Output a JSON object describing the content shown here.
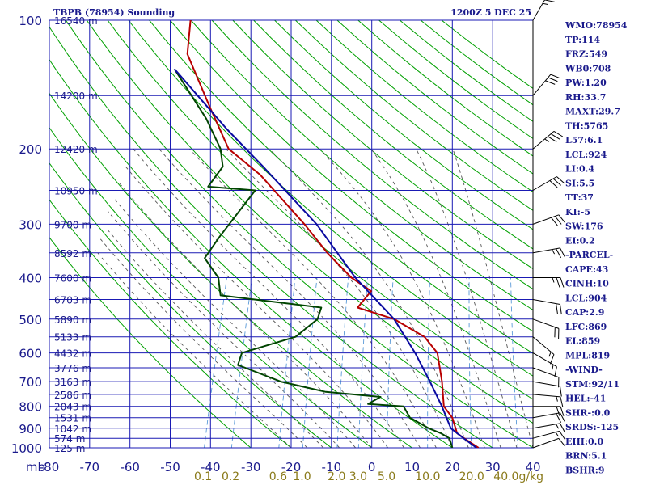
{
  "chart_data": {
    "type": "line",
    "title": "TBPB (78954) Sounding",
    "time_label": "1200Z  5 DEC 25",
    "x_unit_label": "mb",
    "mix_unit_label": "g/kg",
    "x_range_c": [
      -80,
      40
    ],
    "p_range_mb": [
      1000,
      100
    ],
    "x_ticks": [
      "-80",
      "-70",
      "-60",
      "-50",
      "-40",
      "-30",
      "-20",
      "-10",
      "0",
      "10",
      "20",
      "30",
      "40"
    ],
    "x_tick_values": [
      -80,
      -70,
      -60,
      -50,
      -40,
      -30,
      -20,
      -10,
      0,
      10,
      20,
      30,
      40
    ],
    "pressure_ticks": [
      "100",
      "200",
      "300",
      "400",
      "500",
      "600",
      "700",
      "800",
      "900",
      "1000"
    ],
    "pressure_values": [
      100,
      200,
      300,
      400,
      500,
      600,
      700,
      800,
      900,
      1000
    ],
    "altitudes": [
      {
        "p": 100,
        "label": "16540 m"
      },
      {
        "p": 150,
        "label": "14200 m"
      },
      {
        "p": 200,
        "label": "12420 m"
      },
      {
        "p": 250,
        "label": "10950 m"
      },
      {
        "p": 300,
        "label": "9700 m"
      },
      {
        "p": 350,
        "label": "8592 m"
      },
      {
        "p": 400,
        "label": "7600 m"
      },
      {
        "p": 450,
        "label": "6703 m"
      },
      {
        "p": 500,
        "label": "5890 m"
      },
      {
        "p": 550,
        "label": "5133 m"
      },
      {
        "p": 600,
        "label": "4432 m"
      },
      {
        "p": 650,
        "label": "3776 m"
      },
      {
        "p": 700,
        "label": "3163 m"
      },
      {
        "p": 750,
        "label": "2586 m"
      },
      {
        "p": 800,
        "label": "2043 m"
      },
      {
        "p": 850,
        "label": "1531 m"
      },
      {
        "p": 900,
        "label": "1042 m"
      },
      {
        "p": 950,
        "label": "574 m"
      },
      {
        "p": 1000,
        "label": "125 m"
      }
    ],
    "mixing_ratio_labels": [
      "0.1",
      "0.2",
      "0.6",
      "1.0",
      "2.0",
      "3.0",
      "5.0",
      "10.0",
      "20.0",
      "40.0"
    ],
    "mixing_ratio_values": [
      0.1,
      0.2,
      0.6,
      1.0,
      2.0,
      3.0,
      5.0,
      10.0,
      20.0,
      40.0
    ],
    "series": [
      {
        "name": "temperature",
        "color": "#b80000",
        "points": [
          [
            26.5,
            1000
          ],
          [
            23,
            960
          ],
          [
            20,
            925
          ],
          [
            17.5,
            850
          ],
          [
            14.5,
            800
          ],
          [
            12,
            700
          ],
          [
            8.5,
            600
          ],
          [
            4,
            550
          ],
          [
            -5,
            500
          ],
          [
            -15,
            470
          ],
          [
            -13,
            430
          ],
          [
            -19,
            400
          ],
          [
            -27,
            350
          ],
          [
            -35,
            300
          ],
          [
            -50,
            230
          ],
          [
            -60,
            200
          ],
          [
            -68,
            160
          ],
          [
            -78,
            120
          ],
          [
            -80,
            100
          ]
        ]
      },
      {
        "name": "dewpoint",
        "color": "#004400",
        "points": [
          [
            20,
            1000
          ],
          [
            18.5,
            950
          ],
          [
            16,
            925
          ],
          [
            12.5,
            900
          ],
          [
            7,
            850
          ],
          [
            4.5,
            800
          ],
          [
            -4.5,
            790
          ],
          [
            -2,
            760
          ],
          [
            -16,
            740
          ],
          [
            -28,
            700
          ],
          [
            -40,
            640
          ],
          [
            -40,
            600
          ],
          [
            -28,
            550
          ],
          [
            -24,
            500
          ],
          [
            -24,
            470
          ],
          [
            -50,
            440
          ],
          [
            -52,
            400
          ],
          [
            -57,
            360
          ],
          [
            -55,
            320
          ],
          [
            -50,
            250
          ],
          [
            -62,
            245
          ],
          [
            -60,
            220
          ],
          [
            -62,
            200
          ],
          [
            -68,
            170
          ],
          [
            -80,
            130
          ]
        ]
      },
      {
        "name": "parcel",
        "color": "#0a0aa0",
        "points": [
          [
            26,
            1000
          ],
          [
            22,
            950
          ],
          [
            18,
            900
          ],
          [
            14,
            800
          ],
          [
            9,
            700
          ],
          [
            3,
            600
          ],
          [
            -5,
            500
          ],
          [
            -18,
            400
          ],
          [
            -32,
            300
          ],
          [
            -50,
            220
          ],
          [
            -62,
            180
          ],
          [
            -80,
            130
          ]
        ]
      }
    ],
    "wind_barbs": [
      {
        "p": 1000,
        "dir_deg": 70,
        "speed_kt": 10
      },
      {
        "p": 950,
        "dir_deg": 75,
        "speed_kt": 15
      },
      {
        "p": 900,
        "dir_deg": 80,
        "speed_kt": 15
      },
      {
        "p": 850,
        "dir_deg": 80,
        "speed_kt": 20
      },
      {
        "p": 800,
        "dir_deg": 90,
        "speed_kt": 20
      },
      {
        "p": 750,
        "dir_deg": 95,
        "speed_kt": 15
      },
      {
        "p": 700,
        "dir_deg": 100,
        "speed_kt": 10
      },
      {
        "p": 650,
        "dir_deg": 110,
        "speed_kt": 10
      },
      {
        "p": 600,
        "dir_deg": 120,
        "speed_kt": 15
      },
      {
        "p": 550,
        "dir_deg": 130,
        "speed_kt": 15
      },
      {
        "p": 500,
        "dir_deg": 110,
        "speed_kt": 20
      },
      {
        "p": 450,
        "dir_deg": 100,
        "speed_kt": 20
      },
      {
        "p": 400,
        "dir_deg": 90,
        "speed_kt": 25
      },
      {
        "p": 350,
        "dir_deg": 80,
        "speed_kt": 25
      },
      {
        "p": 300,
        "dir_deg": 70,
        "speed_kt": 30
      },
      {
        "p": 250,
        "dir_deg": 60,
        "speed_kt": 30
      },
      {
        "p": 200,
        "dir_deg": 50,
        "speed_kt": 35
      },
      {
        "p": 150,
        "dir_deg": 40,
        "speed_kt": 30
      },
      {
        "p": 100,
        "dir_deg": 30,
        "speed_kt": 25
      }
    ]
  },
  "indices": [
    "WMO:78954",
    "TP:114",
    "FRZ:549",
    "WB0:708",
    "PW:1.20",
    "RH:33.7",
    "MAXT:29.7",
    "TH:5765",
    "L57:6.1",
    "LCL:924",
    "LI:0.4",
    "SI:5.5",
    "TT:37",
    "KI:-5",
    "SW:176",
    "EI:0.2",
    "-PARCEL-",
    "CAPE:43",
    "CINH:10",
    "LCL:904",
    "CAP:2.9",
    "LFC:869",
    "EL:859",
    "MPL:819",
    "-WIND-",
    "STM:92/11",
    "HEL:-41",
    "SHR-:0.0",
    "SRDS:-125",
    "EHI:0.0",
    "BRN:5.1",
    "BSHR:9"
  ],
  "colors": {
    "grid": "#1a1ab4",
    "dry_adiabat": "#00a000",
    "moist_adiabat": "#555555",
    "mixing_ratio": "#5a9ad8",
    "temperature": "#b80000",
    "dewpoint": "#004400",
    "parcel": "#0a0aa0",
    "text": "#1a1a8c",
    "mix_text": "#8a7a1a"
  }
}
